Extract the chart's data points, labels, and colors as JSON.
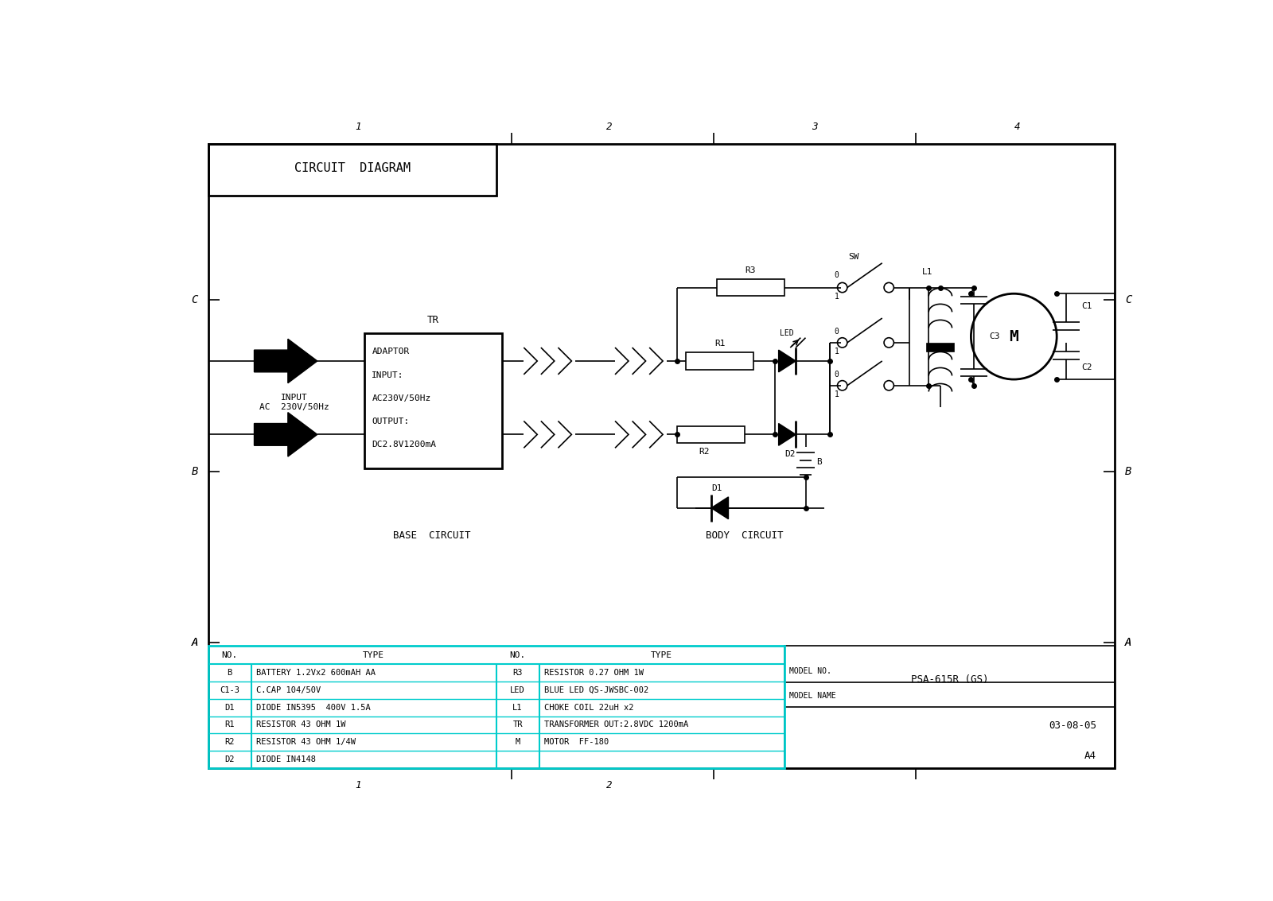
{
  "title": "CIRCUIT  DIAGRAM",
  "bg_color": "#ffffff",
  "line_color": "#000000",
  "adaptor_text": [
    "ADAPTOR",
    "INPUT:",
    "AC230V/50Hz",
    "OUTPUT:",
    "DC2.8V1200mA"
  ],
  "tr_label": "TR",
  "input_label1": "INPUT",
  "input_label2": "AC  230V/50Hz",
  "base_circuit_label": "BASE  CIRCUIT",
  "body_circuit_label": "BODY  CIRCUIT",
  "model_no_label": "MODEL NO.",
  "model_name_label": "MODEL NAME",
  "model_no_value": "PSA-615R (GS)",
  "date_value": "03-08-05",
  "size_value": "A4",
  "bom_headers": [
    "NO.",
    "TYPE",
    "NO.",
    "TYPE"
  ],
  "bom_rows_left": [
    [
      "B",
      "BATTERY 1.2Vx2 600mAH AA"
    ],
    [
      "C1-3",
      "C.CAP 104/50V"
    ],
    [
      "D1",
      "DIODE IN5395  400V 1.5A"
    ],
    [
      "R1",
      "RESISTOR 43 OHM 1W"
    ],
    [
      "R2",
      "RESISTOR 43 OHM 1/4W"
    ],
    [
      "D2",
      "DIODE IN4148"
    ]
  ],
  "bom_rows_right": [
    [
      "R3",
      "RESISTOR 0.27 OHM 1W"
    ],
    [
      "LED",
      "BLUE LED QS-JWSBC-002"
    ],
    [
      "L1",
      "CHOKE COIL 22uH x2"
    ],
    [
      "TR",
      "TRANSFORMER OUT:2.8VDC 1200mA"
    ],
    [
      "M",
      "MOTOR  FF-180"
    ],
    [
      "",
      ""
    ]
  ]
}
